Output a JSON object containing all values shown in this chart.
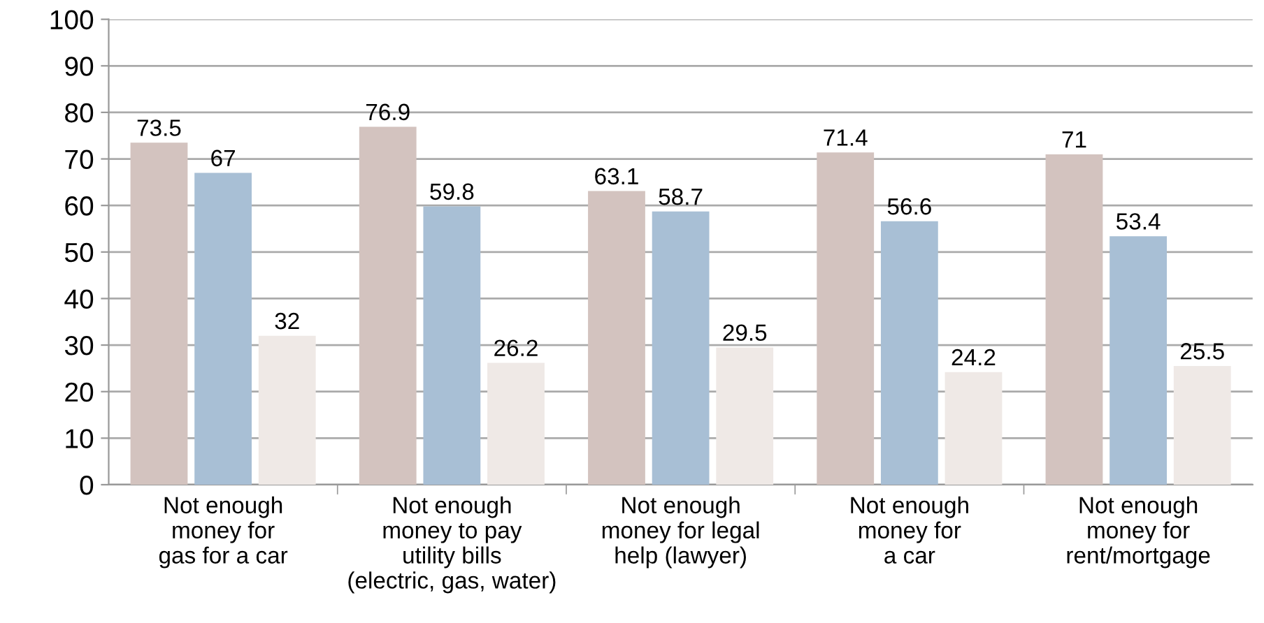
{
  "chart_data": {
    "type": "bar",
    "categories": [
      "Not enough\nmoney for\ngas for a car",
      "Not enough\nmoney to pay\nutility bills\n(electric, gas, water)",
      "Not enough\nmoney for legal\nhelp (lawyer)",
      "Not enough\nmoney for\na car",
      "Not enough\nmoney for\nrent/mortgage"
    ],
    "series": [
      {
        "color": "#d3c3bf",
        "values": [
          73.5,
          76.9,
          63.1,
          71.4,
          71
        ]
      },
      {
        "color": "#a8bfd5",
        "values": [
          67,
          59.8,
          58.7,
          56.6,
          53.4
        ]
      },
      {
        "color": "#efe9e6",
        "values": [
          32,
          26.2,
          29.5,
          24.2,
          25.5
        ]
      }
    ],
    "ylim": [
      0,
      100
    ],
    "yticks": [
      0,
      10,
      20,
      30,
      40,
      50,
      60,
      70,
      80,
      90,
      100
    ],
    "grid": "y",
    "data_labels": true,
    "legend": false
  }
}
